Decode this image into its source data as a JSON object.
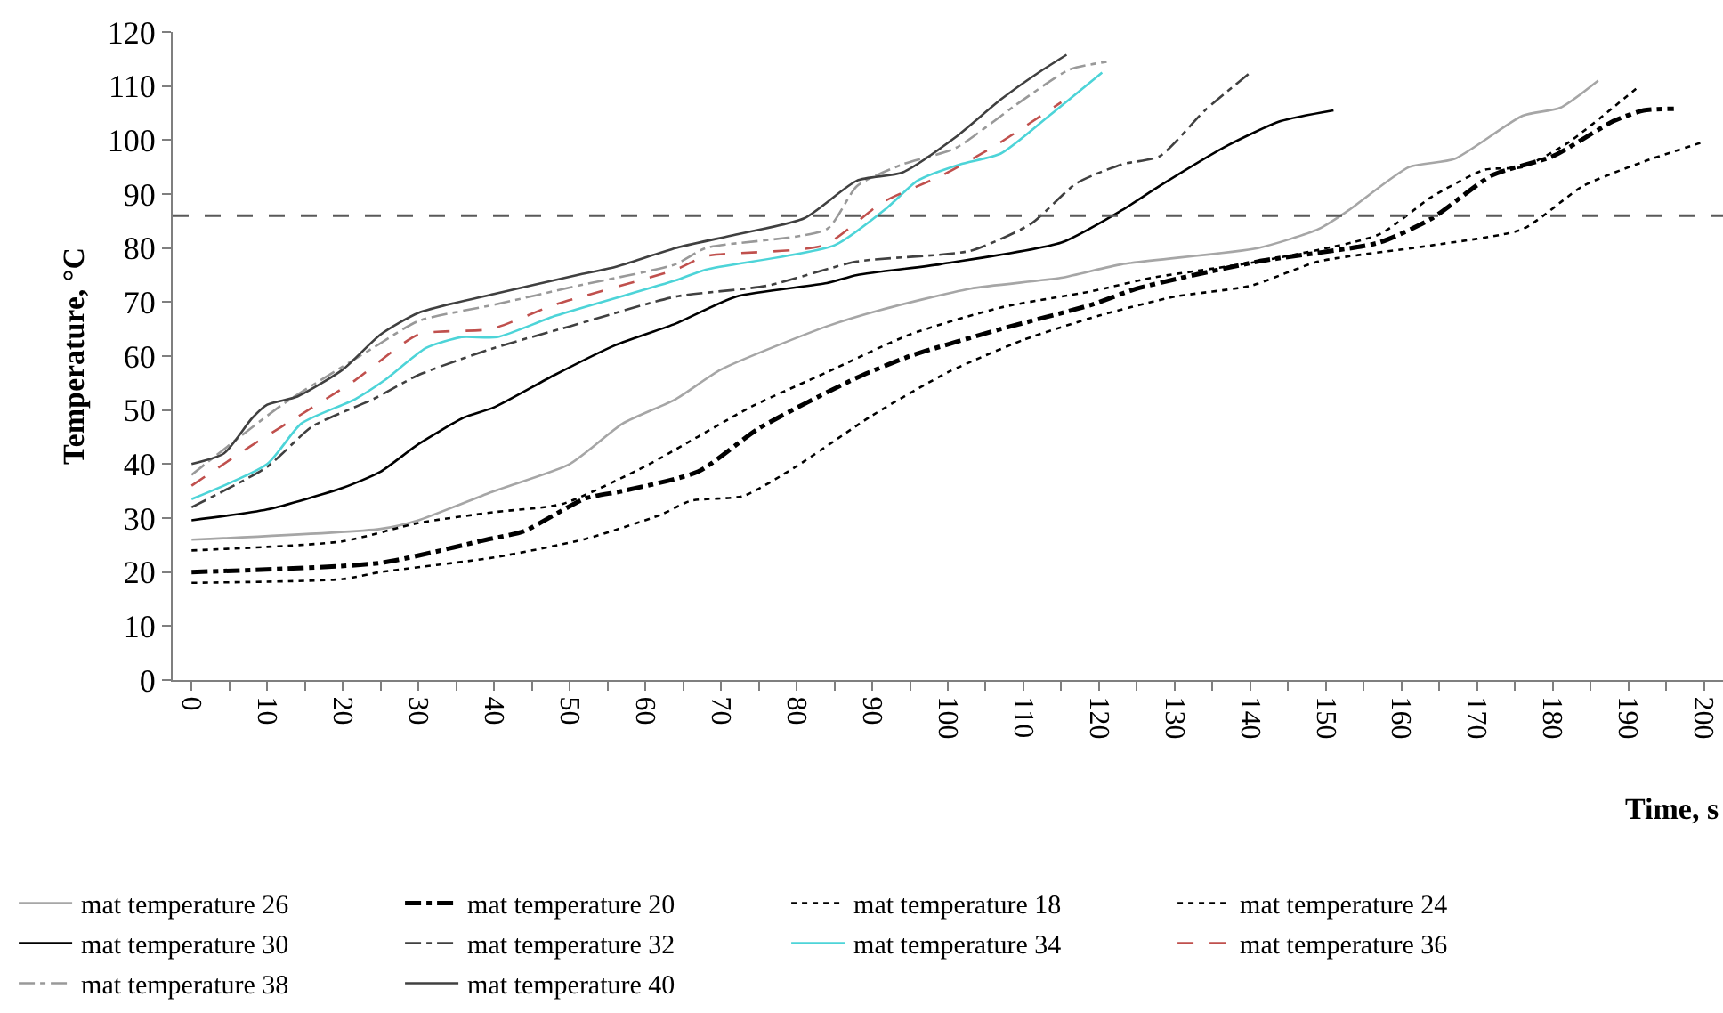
{
  "chart_data": {
    "type": "line",
    "xlabel": "Time, s",
    "ylabel": "Temperature, °C",
    "xlim": [
      -2.5,
      202.5
    ],
    "xticks": [
      0,
      {
        "value": 5,
        "label": null
      },
      10,
      {
        "value": 15,
        "label": null
      },
      20,
      {
        "value": 25,
        "label": null
      },
      30,
      {
        "value": 35,
        "label": null
      },
      40,
      {
        "value": 45,
        "label": null
      },
      50,
      {
        "value": 55,
        "label": null
      },
      60,
      {
        "value": 65,
        "label": null
      },
      70,
      {
        "value": 75,
        "label": null
      },
      80,
      {
        "value": 85,
        "label": null
      },
      90,
      {
        "value": 95,
        "label": null
      },
      100,
      {
        "value": 105,
        "label": null
      },
      110,
      {
        "value": 115,
        "label": null
      },
      120,
      {
        "value": 125,
        "label": null
      },
      130,
      {
        "value": 135,
        "label": null
      },
      140,
      {
        "value": 145,
        "label": null
      },
      150,
      {
        "value": 155,
        "label": null
      },
      160,
      {
        "value": 165,
        "label": null
      },
      170,
      {
        "value": 175,
        "label": null
      },
      180,
      {
        "value": 185,
        "label": null
      },
      190,
      {
        "value": 195,
        "label": null
      },
      200
    ],
    "ylim": [
      0,
      120
    ],
    "yticks": [
      0,
      10,
      20,
      30,
      40,
      50,
      60,
      70,
      80,
      90,
      100,
      110,
      120
    ],
    "grid": false,
    "legend": "bottom",
    "ref_lines": [
      {
        "axis": "y",
        "value": 86,
        "color": "#595959",
        "line_style": "dashed"
      }
    ],
    "series": [
      {
        "name": "mat temperature 26",
        "color": "#a6a6a6",
        "line_style": "solid",
        "x": [
          0,
          25,
          30,
          40,
          50,
          57,
          64,
          70,
          84,
          91,
          103,
          115,
          123,
          141,
          149,
          153,
          161,
          167,
          176,
          181,
          186
        ],
        "values": [
          26,
          28,
          29.6,
          35,
          40,
          47.5,
          52,
          57.5,
          65.5,
          68.5,
          72.5,
          74.5,
          77,
          80,
          83.5,
          87,
          95,
          96.5,
          104.5,
          106,
          111
        ]
      },
      {
        "name": "mat temperature 20",
        "color": "#000000",
        "line_style": "dashdot",
        "x": [
          0,
          25,
          39,
          44,
          52,
          57,
          67,
          75,
          88,
          95,
          107,
          119,
          125,
          141,
          157,
          164,
          172,
          180,
          188,
          192,
          196
        ],
        "values": [
          20,
          21.7,
          26,
          27.6,
          33.6,
          35,
          38.6,
          46.6,
          56,
          60,
          65,
          69.5,
          72.5,
          77.5,
          81,
          85.5,
          93.5,
          97,
          103.5,
          105.5,
          105.8
        ]
      },
      {
        "name": "mat temperature 18",
        "color": "#000000",
        "line_style": "dotted",
        "x": [
          0,
          20,
          25,
          40,
          52,
          62,
          66,
          73,
          80,
          90,
          100,
          110,
          120,
          130,
          140,
          149,
          164,
          176,
          184,
          192,
          200
        ],
        "values": [
          18,
          18.7,
          20,
          22.7,
          26.1,
          30.6,
          33.2,
          34.1,
          39.6,
          49,
          57,
          63,
          67.5,
          71,
          73,
          77.5,
          80.5,
          83.5,
          91.5,
          96,
          99.7
        ]
      },
      {
        "name": "mat temperature 24",
        "color": "#000000",
        "line_style": "dotted",
        "x": [
          0,
          20,
          30,
          40,
          49,
          60,
          74,
          84,
          95,
          107,
          119,
          127,
          141,
          157,
          164,
          171,
          176,
          182,
          191
        ],
        "values": [
          24,
          25.7,
          29.1,
          31.1,
          32.6,
          39.6,
          50.6,
          57,
          64,
          69,
          72,
          74.5,
          77.5,
          82.5,
          89.5,
          94.5,
          95,
          99.5,
          109.5
        ]
      },
      {
        "name": "mat temperature 30",
        "color": "#000000",
        "line_style": "solid",
        "x": [
          0,
          10,
          20,
          25,
          30,
          36,
          40,
          48,
          56,
          64,
          72,
          84,
          88,
          99,
          115,
          123,
          128,
          137,
          144,
          151
        ],
        "values": [
          29.6,
          31.6,
          35.6,
          38.6,
          43.7,
          48.6,
          50.5,
          56.5,
          62,
          66,
          71,
          73.5,
          75,
          77,
          81,
          87,
          91.5,
          99,
          103.5,
          105.5
        ]
      },
      {
        "name": "mat temperature 32",
        "color": "#404040",
        "line_style": "dashdot",
        "x": [
          0,
          10,
          16,
          24,
          30,
          40,
          50,
          64,
          76,
          88,
          103,
          111,
          117,
          123,
          128,
          134,
          140
        ],
        "values": [
          32,
          39.5,
          47,
          52,
          56.5,
          61.5,
          65.5,
          71,
          73,
          77.5,
          79.5,
          84.5,
          92,
          95.5,
          97,
          105.5,
          112.5
        ]
      },
      {
        "name": "mat temperature 34",
        "color": "#4dd4d8",
        "line_style": "solid",
        "x": [
          0,
          10,
          14.5,
          21.6,
          25.5,
          31,
          35.7,
          40.4,
          48.2,
          64,
          68,
          85,
          92,
          96,
          101.6,
          107,
          113.4,
          120.4
        ],
        "values": [
          33.5,
          40,
          47.5,
          52,
          55.5,
          61.5,
          63.5,
          63.5,
          67.5,
          74,
          76,
          80.5,
          87.5,
          92.5,
          95.5,
          97.5,
          104.5,
          112.5
        ]
      },
      {
        "name": "mat temperature 36",
        "color": "#c0504d",
        "line_style": "dashed",
        "x": [
          0,
          8,
          12,
          21.6,
          30,
          39.6,
          48,
          64,
          68,
          83.6,
          91.4,
          99.3,
          106.3,
          115
        ],
        "values": [
          36,
          43.5,
          47,
          55.5,
          64,
          65,
          69.5,
          76,
          78.5,
          80.5,
          88.5,
          93.5,
          99,
          107
        ]
      },
      {
        "name": "mat temperature 38",
        "color": "#999999",
        "line_style": "dashdot",
        "x": [
          0,
          12,
          24,
          30,
          40,
          51,
          64,
          68,
          84,
          88,
          94,
          101,
          109,
          116,
          121
        ],
        "values": [
          38,
          51,
          61.5,
          66.5,
          69.5,
          73,
          77,
          80,
          83.5,
          91.5,
          95.5,
          98.5,
          106.5,
          113,
          114.5
        ]
      },
      {
        "name": "mat temperature 40",
        "color": "#404040",
        "line_style": "solid",
        "x": [
          0,
          4.3,
          8,
          10,
          14,
          20,
          25,
          30,
          40,
          51,
          56,
          64,
          72,
          81,
          88,
          94,
          101,
          107,
          112,
          115.7
        ],
        "values": [
          40,
          42,
          48.5,
          51,
          52.5,
          57.5,
          64,
          68,
          71.5,
          75,
          76.5,
          80,
          82.5,
          85.5,
          92.5,
          94,
          100.5,
          107.5,
          112.5,
          115.8
        ]
      }
    ]
  }
}
